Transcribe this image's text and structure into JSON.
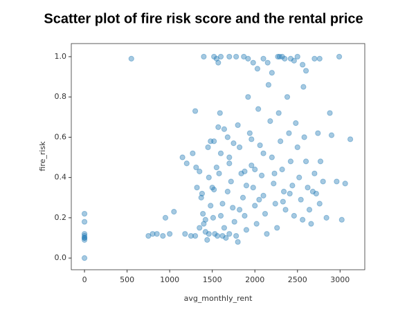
{
  "chart_data": {
    "type": "scatter",
    "title": "Scatter plot of fire risk score and the rental price",
    "xlabel": "avg_monthly_rent",
    "ylabel": "fire_risk",
    "xlim": [
      -155,
      3290
    ],
    "ylim": [
      -0.058,
      1.065
    ],
    "xticks": [
      0,
      500,
      1000,
      1500,
      2000,
      2500,
      3000
    ],
    "yticks": [
      {
        "value": 0,
        "label": "0.0"
      },
      0.2,
      0.4,
      0.6,
      0.8,
      {
        "value": 1,
        "label": "1.0"
      }
    ],
    "series": [
      {
        "color": "#1f77b4",
        "x": [
          0,
          0,
          0,
          0,
          0,
          0,
          0,
          0,
          550,
          750,
          800,
          850,
          920,
          950,
          1000,
          1050,
          1150,
          1200,
          1180,
          1250,
          1270,
          1300,
          1320,
          1310,
          1350,
          1370,
          1390,
          1400,
          1420,
          1440,
          1460,
          1480,
          1500,
          1510,
          1530,
          1550,
          1570,
          1590,
          1600,
          1620,
          1640,
          1660,
          1680,
          1700,
          1720,
          1740,
          1760,
          1780,
          1800,
          1820,
          1840,
          1860,
          1880,
          1900,
          1920,
          1940,
          1960,
          1980,
          2000,
          2020,
          2040,
          2060,
          2080,
          2100,
          2120,
          2140,
          2160,
          2180,
          2200,
          2220,
          2240,
          2260,
          2280,
          2300,
          2320,
          2340,
          2360,
          2380,
          2400,
          2420,
          2440,
          2460,
          2480,
          2500,
          2520,
          2540,
          2560,
          2580,
          2600,
          2620,
          2640,
          2660,
          2700,
          2720,
          2740,
          2760,
          2800,
          2840,
          2880,
          2900,
          2960,
          3020,
          3060,
          3120,
          1400,
          1520,
          1550,
          1570,
          1600,
          1700,
          1780,
          1870,
          1920,
          1980,
          2030,
          2100,
          2150,
          2200,
          2270,
          2290,
          2320,
          2350,
          2420,
          2460,
          2500,
          2560,
          2600,
          2700,
          2760,
          2990,
          1450,
          1380,
          1520,
          1580,
          1640,
          1700,
          1750,
          1820,
          1880,
          1960,
          2050,
          2100,
          2230,
          2330,
          2410,
          2570,
          2680,
          2770,
          1520,
          1460,
          1560,
          1620,
          1700,
          1800,
          1480,
          1600,
          1680,
          1900,
          2000,
          1300,
          1350,
          1420
        ],
        "values": [
          0.22,
          0.18,
          0.12,
          0.11,
          0.1,
          0.09,
          0.1,
          0.0,
          0.99,
          0.11,
          0.12,
          0.12,
          0.11,
          0.2,
          0.12,
          0.23,
          0.5,
          0.47,
          0.12,
          0.11,
          0.52,
          0.73,
          0.35,
          0.45,
          0.43,
          0.3,
          0.22,
          0.17,
          0.13,
          0.09,
          0.4,
          0.58,
          0.35,
          0.2,
          0.12,
          0.45,
          0.65,
          0.72,
          0.52,
          0.27,
          0.15,
          0.1,
          0.6,
          0.5,
          0.38,
          0.25,
          0.18,
          0.11,
          0.66,
          0.55,
          0.42,
          0.3,
          0.21,
          0.14,
          0.8,
          0.62,
          0.46,
          0.35,
          0.26,
          0.17,
          0.74,
          0.56,
          0.41,
          0.31,
          0.22,
          0.12,
          0.86,
          0.68,
          0.5,
          0.37,
          0.27,
          0.15,
          0.72,
          0.58,
          0.44,
          0.33,
          0.24,
          0.8,
          0.62,
          0.48,
          0.36,
          0.21,
          0.67,
          0.55,
          0.4,
          0.29,
          0.19,
          0.6,
          0.48,
          0.35,
          0.24,
          0.17,
          0.42,
          0.32,
          0.62,
          0.27,
          0.38,
          0.2,
          0.72,
          0.61,
          0.38,
          0.19,
          0.37,
          0.59,
          1.0,
          1.0,
          0.99,
          0.97,
          1.0,
          1.0,
          1.0,
          1.0,
          0.99,
          0.97,
          0.94,
          0.99,
          0.97,
          0.92,
          1.0,
          1.0,
          1.0,
          0.99,
          0.99,
          0.98,
          1.0,
          0.96,
          0.93,
          0.99,
          0.99,
          1.0,
          0.55,
          0.32,
          0.34,
          0.42,
          0.64,
          0.47,
          0.57,
          0.24,
          0.43,
          0.59,
          0.29,
          0.52,
          0.42,
          0.28,
          0.32,
          0.85,
          0.33,
          0.48,
          0.58,
          0.12,
          0.11,
          0.11,
          0.12,
          0.08,
          0.26,
          0.21,
          0.33,
          0.36,
          0.44,
          0.11,
          0.15,
          0.19
        ]
      }
    ]
  }
}
